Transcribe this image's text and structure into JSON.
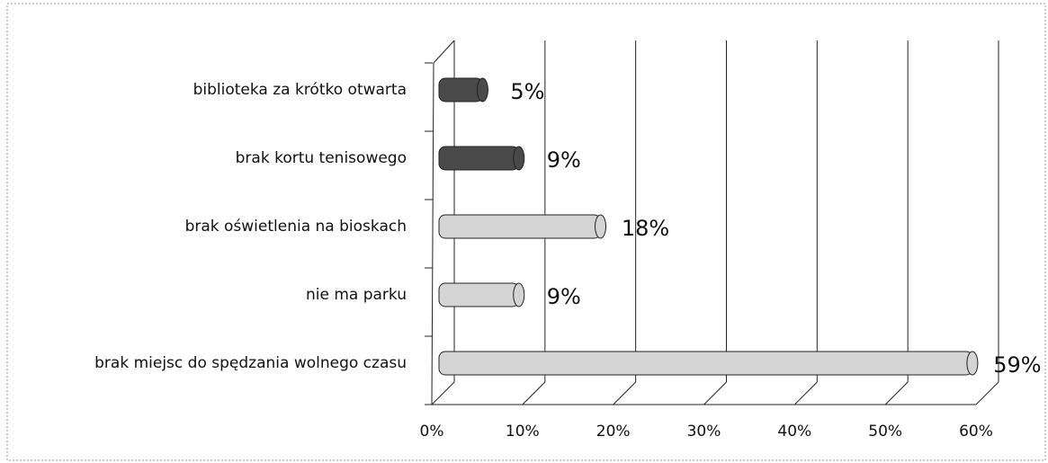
{
  "chart_data": {
    "type": "bar",
    "categories": [
      "biblioteka za krótko otwarta",
      "brak kortu tenisowego",
      "brak oświetlenia na bioskach",
      "nie ma parku",
      "brak miejsc do spędzania wolnego czasu"
    ],
    "values": [
      5,
      9,
      18,
      9,
      59
    ],
    "value_labels": [
      "5%",
      "9%",
      "18%",
      "9%",
      "59%"
    ],
    "colors": [
      "#4a4a4a",
      "#4a4a4a",
      "#d4d4d4",
      "#d4d4d4",
      "#d4d4d4"
    ],
    "xlim": [
      0,
      60
    ],
    "xticks": [
      {
        "value": 0,
        "label": "0%"
      },
      {
        "value": 10,
        "label": "10%"
      },
      {
        "value": 20,
        "label": "20%"
      },
      {
        "value": 30,
        "label": "30%"
      },
      {
        "value": 40,
        "label": "40%"
      },
      {
        "value": 50,
        "label": "50%"
      },
      {
        "value": 60,
        "label": "60%"
      }
    ],
    "grid": true
  }
}
